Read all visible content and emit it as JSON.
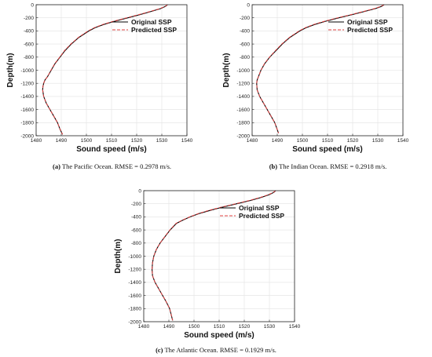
{
  "chart_data": [
    {
      "type": "line",
      "caption_letter": "(a)",
      "caption_text": "The Pacific Ocean. RMSE = 0.2978 m/s.",
      "xlabel": "Sound speed (m/s)",
      "ylabel": "Depth(m)",
      "xlim": [
        1480,
        1540
      ],
      "ylim": [
        -2000,
        0
      ],
      "xticks": [
        "1480",
        "1490",
        "1500",
        "1510",
        "1520",
        "1530",
        "1540"
      ],
      "yticks": [
        "0",
        "-200",
        "-400",
        "-600",
        "-800",
        "-1000",
        "-1200",
        "-1400",
        "-1600",
        "-1800",
        "-2000"
      ],
      "grid": true,
      "legend_position": "top-right",
      "series": [
        {
          "name": "Original SSP",
          "color": "#000000",
          "style": "solid",
          "x": [
            1532.3,
            1531.5,
            1529.5,
            1526.0,
            1521.5,
            1516.5,
            1511.5,
            1507.0,
            1503.5,
            1501.0,
            1497.0,
            1494.0,
            1491.5,
            1489.5,
            1487.5,
            1486.0,
            1484.5,
            1483.5,
            1483.0,
            1482.7,
            1482.6,
            1483.0,
            1484.0,
            1485.5,
            1487.0,
            1488.5,
            1489.5,
            1490.5
          ],
          "y": [
            0,
            -25,
            -60,
            -100,
            -150,
            -200,
            -250,
            -300,
            -350,
            -400,
            -500,
            -600,
            -700,
            -800,
            -900,
            -1000,
            -1100,
            -1150,
            -1200,
            -1250,
            -1300,
            -1400,
            -1500,
            -1600,
            -1700,
            -1800,
            -1900,
            -1980
          ]
        },
        {
          "name": "Predicted SSP",
          "color": "#e04040",
          "style": "dashed",
          "x": [
            1532.3,
            1531.3,
            1529.2,
            1525.6,
            1521.0,
            1516.0,
            1511.0,
            1506.6,
            1503.2,
            1500.7,
            1496.8,
            1493.8,
            1491.3,
            1489.4,
            1487.4,
            1485.9,
            1484.5,
            1483.5,
            1483.0,
            1482.7,
            1482.6,
            1483.0,
            1484.0,
            1485.5,
            1487.0,
            1488.5,
            1489.5,
            1490.5
          ],
          "y": [
            0,
            -25,
            -60,
            -100,
            -150,
            -200,
            -250,
            -300,
            -350,
            -400,
            -500,
            -600,
            -700,
            -800,
            -900,
            -1000,
            -1100,
            -1150,
            -1200,
            -1250,
            -1300,
            -1400,
            -1500,
            -1600,
            -1700,
            -1800,
            -1900,
            -1980
          ]
        }
      ]
    },
    {
      "type": "line",
      "caption_letter": "(b)",
      "caption_text": "The Indian Ocean. RMSE = 0.2918 m/s.",
      "xlabel": "Sound speed (m/s)",
      "ylabel": "Depth(m)",
      "xlim": [
        1480,
        1540
      ],
      "ylim": [
        -2000,
        0
      ],
      "xticks": [
        "1480",
        "1490",
        "1500",
        "1510",
        "1520",
        "1530",
        "1540"
      ],
      "yticks": [
        "0",
        "-200",
        "-400",
        "-600",
        "-800",
        "-1000",
        "-1200",
        "-1400",
        "-1600",
        "-1800",
        "-2000"
      ],
      "grid": true,
      "legend_position": "top-right",
      "series": [
        {
          "name": "Original SSP",
          "color": "#000000",
          "style": "solid",
          "x": [
            1532.5,
            1531.5,
            1529.0,
            1525.0,
            1520.0,
            1514.5,
            1509.5,
            1505.0,
            1501.5,
            1499.0,
            1495.0,
            1492.0,
            1489.5,
            1487.0,
            1485.0,
            1483.5,
            1482.5,
            1482.0,
            1481.8,
            1482.0,
            1483.0,
            1484.5,
            1486.0,
            1487.5,
            1489.0,
            1490.5
          ],
          "y": [
            0,
            -25,
            -60,
            -100,
            -150,
            -200,
            -250,
            -300,
            -350,
            -400,
            -500,
            -600,
            -700,
            -800,
            -900,
            -1000,
            -1100,
            -1150,
            -1200,
            -1300,
            -1400,
            -1500,
            -1600,
            -1700,
            -1800,
            -1960
          ]
        },
        {
          "name": "Predicted SSP",
          "color": "#e04040",
          "style": "dashed",
          "x": [
            1532.5,
            1531.2,
            1528.6,
            1524.6,
            1519.5,
            1514.0,
            1509.0,
            1504.6,
            1501.2,
            1498.7,
            1494.8,
            1491.8,
            1489.3,
            1486.9,
            1484.9,
            1483.5,
            1482.5,
            1482.0,
            1481.8,
            1482.0,
            1483.0,
            1484.5,
            1486.0,
            1487.5,
            1489.0,
            1490.5
          ],
          "y": [
            0,
            -25,
            -60,
            -100,
            -150,
            -200,
            -250,
            -300,
            -350,
            -400,
            -500,
            -600,
            -700,
            -800,
            -900,
            -1000,
            -1100,
            -1150,
            -1200,
            -1300,
            -1400,
            -1500,
            -1600,
            -1700,
            -1800,
            -1960
          ]
        }
      ]
    },
    {
      "type": "line",
      "caption_letter": "(c)",
      "caption_text": "The Atlantic Ocean. RMSE = 0.1929 m/s.",
      "xlabel": "Sound speed (m/s)",
      "ylabel": "Depth(m)",
      "xlim": [
        1480,
        1540
      ],
      "ylim": [
        -2000,
        0
      ],
      "xticks": [
        "1480",
        "1490",
        "1500",
        "1510",
        "1520",
        "1530",
        "1540"
      ],
      "yticks": [
        "0",
        "-200",
        "-400",
        "-600",
        "-800",
        "-1000",
        "-1200",
        "-1400",
        "-1600",
        "-1800",
        "-2000"
      ],
      "grid": true,
      "legend_position": "top-right",
      "series": [
        {
          "name": "Original SSP",
          "color": "#000000",
          "style": "solid",
          "x": [
            1532.5,
            1531.8,
            1530.0,
            1527.0,
            1522.5,
            1517.0,
            1511.5,
            1506.5,
            1502.0,
            1498.5,
            1495.5,
            1493.0,
            1490.5,
            1488.5,
            1486.5,
            1485.0,
            1484.0,
            1483.5,
            1483.3,
            1483.5,
            1484.5,
            1486.0,
            1487.5,
            1489.0,
            1490.3,
            1491.5
          ],
          "y": [
            0,
            -25,
            -60,
            -100,
            -150,
            -200,
            -250,
            -300,
            -350,
            -400,
            -450,
            -500,
            -600,
            -700,
            -800,
            -900,
            -1000,
            -1100,
            -1200,
            -1300,
            -1400,
            -1500,
            -1600,
            -1700,
            -1800,
            -1980
          ]
        },
        {
          "name": "Predicted SSP",
          "color": "#e04040",
          "style": "dashed",
          "x": [
            1532.5,
            1531.6,
            1529.7,
            1526.6,
            1522.0,
            1516.5,
            1511.0,
            1506.0,
            1501.7,
            1498.3,
            1495.3,
            1492.8,
            1490.4,
            1488.4,
            1486.5,
            1485.0,
            1484.0,
            1483.5,
            1483.3,
            1483.5,
            1484.5,
            1486.0,
            1487.5,
            1489.0,
            1490.3,
            1491.5
          ],
          "y": [
            0,
            -25,
            -60,
            -100,
            -150,
            -200,
            -250,
            -300,
            -350,
            -400,
            -450,
            -500,
            -600,
            -700,
            -800,
            -900,
            -1000,
            -1100,
            -1200,
            -1300,
            -1400,
            -1500,
            -1600,
            -1700,
            -1800,
            -1980
          ]
        }
      ]
    }
  ]
}
